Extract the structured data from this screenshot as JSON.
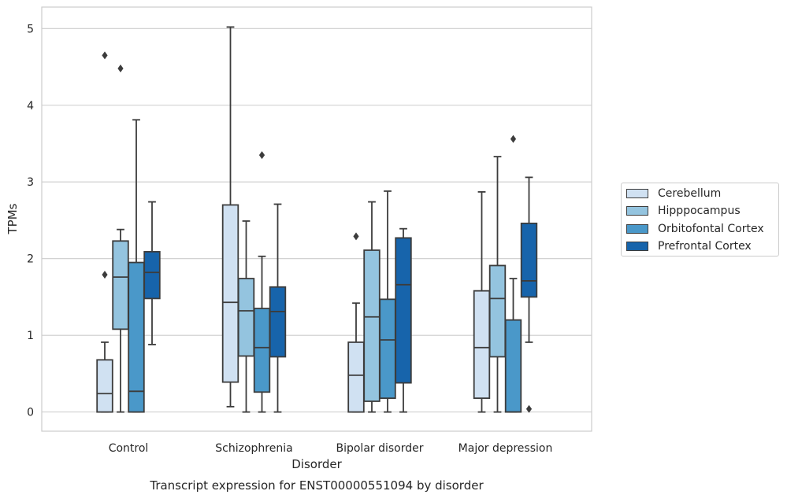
{
  "chart_data": {
    "type": "box",
    "title": "Transcript expression for ENST00000551094 by disorder",
    "xlabel": "Disorder",
    "ylabel": "TPMs",
    "categories": [
      "Control",
      "Schizophrenia",
      "Bipolar disorder",
      "Major depression"
    ],
    "yticks": [
      "0",
      "1",
      "2",
      "3",
      "4",
      "5"
    ],
    "ylim": [
      -0.25,
      5.28
    ],
    "grid": true,
    "legend_position": "right",
    "series": [
      {
        "name": "Cerebellum",
        "color": "#d0e1f2",
        "boxes": [
          {
            "min": 0.0,
            "q1": 0.0,
            "median": 0.24,
            "q3": 0.68,
            "max": 0.91,
            "outliers": [
              1.79,
              4.65
            ]
          },
          {
            "min": 0.07,
            "q1": 0.39,
            "median": 1.43,
            "q3": 2.7,
            "max": 5.02,
            "outliers": []
          },
          {
            "min": 0.0,
            "q1": 0.0,
            "median": 0.48,
            "q3": 0.91,
            "max": 1.42,
            "outliers": [
              2.29
            ]
          },
          {
            "min": 0.0,
            "q1": 0.18,
            "median": 0.84,
            "q3": 1.58,
            "max": 2.87,
            "outliers": []
          }
        ]
      },
      {
        "name": "Hipppocampus",
        "color": "#94c4df",
        "boxes": [
          {
            "min": 0.0,
            "q1": 1.08,
            "median": 1.76,
            "q3": 2.23,
            "max": 2.38,
            "outliers": [
              4.48
            ]
          },
          {
            "min": 0.0,
            "q1": 0.73,
            "median": 1.32,
            "q3": 1.74,
            "max": 2.49,
            "outliers": []
          },
          {
            "min": 0.0,
            "q1": 0.14,
            "median": 1.24,
            "q3": 2.11,
            "max": 2.74,
            "outliers": []
          },
          {
            "min": 0.0,
            "q1": 0.72,
            "median": 1.48,
            "q3": 1.91,
            "max": 3.33,
            "outliers": []
          }
        ]
      },
      {
        "name": "Orbitofontal Cortex",
        "color": "#4a98c9",
        "boxes": [
          {
            "min": 0.0,
            "q1": 0.0,
            "median": 0.27,
            "q3": 1.95,
            "max": 3.81,
            "outliers": []
          },
          {
            "min": 0.0,
            "q1": 0.26,
            "median": 0.84,
            "q3": 1.35,
            "max": 2.03,
            "outliers": [
              3.35
            ]
          },
          {
            "min": 0.0,
            "q1": 0.18,
            "median": 0.94,
            "q3": 1.47,
            "max": 2.88,
            "outliers": []
          },
          {
            "min": 0.0,
            "q1": 0.0,
            "median": 0.0,
            "q3": 1.2,
            "max": 1.74,
            "outliers": [
              3.56
            ]
          }
        ]
      },
      {
        "name": "Prefrontal Cortex",
        "color": "#1764ab",
        "boxes": [
          {
            "min": 0.88,
            "q1": 1.48,
            "median": 1.82,
            "q3": 2.09,
            "max": 2.74,
            "outliers": []
          },
          {
            "min": 0.0,
            "q1": 0.72,
            "median": 1.31,
            "q3": 1.63,
            "max": 2.71,
            "outliers": []
          },
          {
            "min": 0.0,
            "q1": 0.38,
            "median": 1.66,
            "q3": 2.27,
            "max": 2.39,
            "outliers": []
          },
          {
            "min": 0.91,
            "q1": 1.5,
            "median": 1.71,
            "q3": 2.46,
            "max": 3.06,
            "outliers": [
              0.04
            ]
          }
        ]
      }
    ]
  }
}
